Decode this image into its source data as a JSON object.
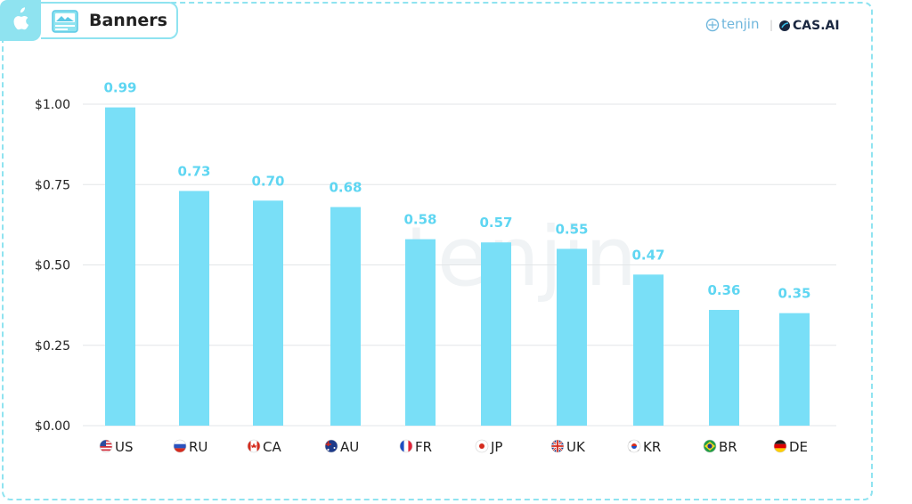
{
  "header": {
    "title": "Banners",
    "brand_tenjin": "tenjin",
    "brand_separator": "|",
    "brand_cas": "CAS.AI",
    "watermark": "tenjin"
  },
  "colors": {
    "accent": "#8fe3f0",
    "bar": "#79dff7",
    "label": "#5fd6f2"
  },
  "chart_data": {
    "type": "bar",
    "categories": [
      "US",
      "RU",
      "CA",
      "AU",
      "FR",
      "JP",
      "UK",
      "KR",
      "BR",
      "DE"
    ],
    "values": [
      0.99,
      0.73,
      0.7,
      0.68,
      0.58,
      0.57,
      0.55,
      0.47,
      0.36,
      0.35
    ],
    "value_labels": [
      "0.99",
      "0.73",
      "0.70",
      "0.68",
      "0.58",
      "0.57",
      "0.55",
      "0.47",
      "0.36",
      "0.35"
    ],
    "y_ticks": [
      0,
      0.25,
      0.5,
      0.75,
      1.0
    ],
    "y_tick_labels": [
      "$0.00",
      "$0.25",
      "$0.50",
      "$0.75",
      "$1.00"
    ],
    "ylim": [
      0,
      1.0
    ],
    "grid": true,
    "legend": "none"
  }
}
